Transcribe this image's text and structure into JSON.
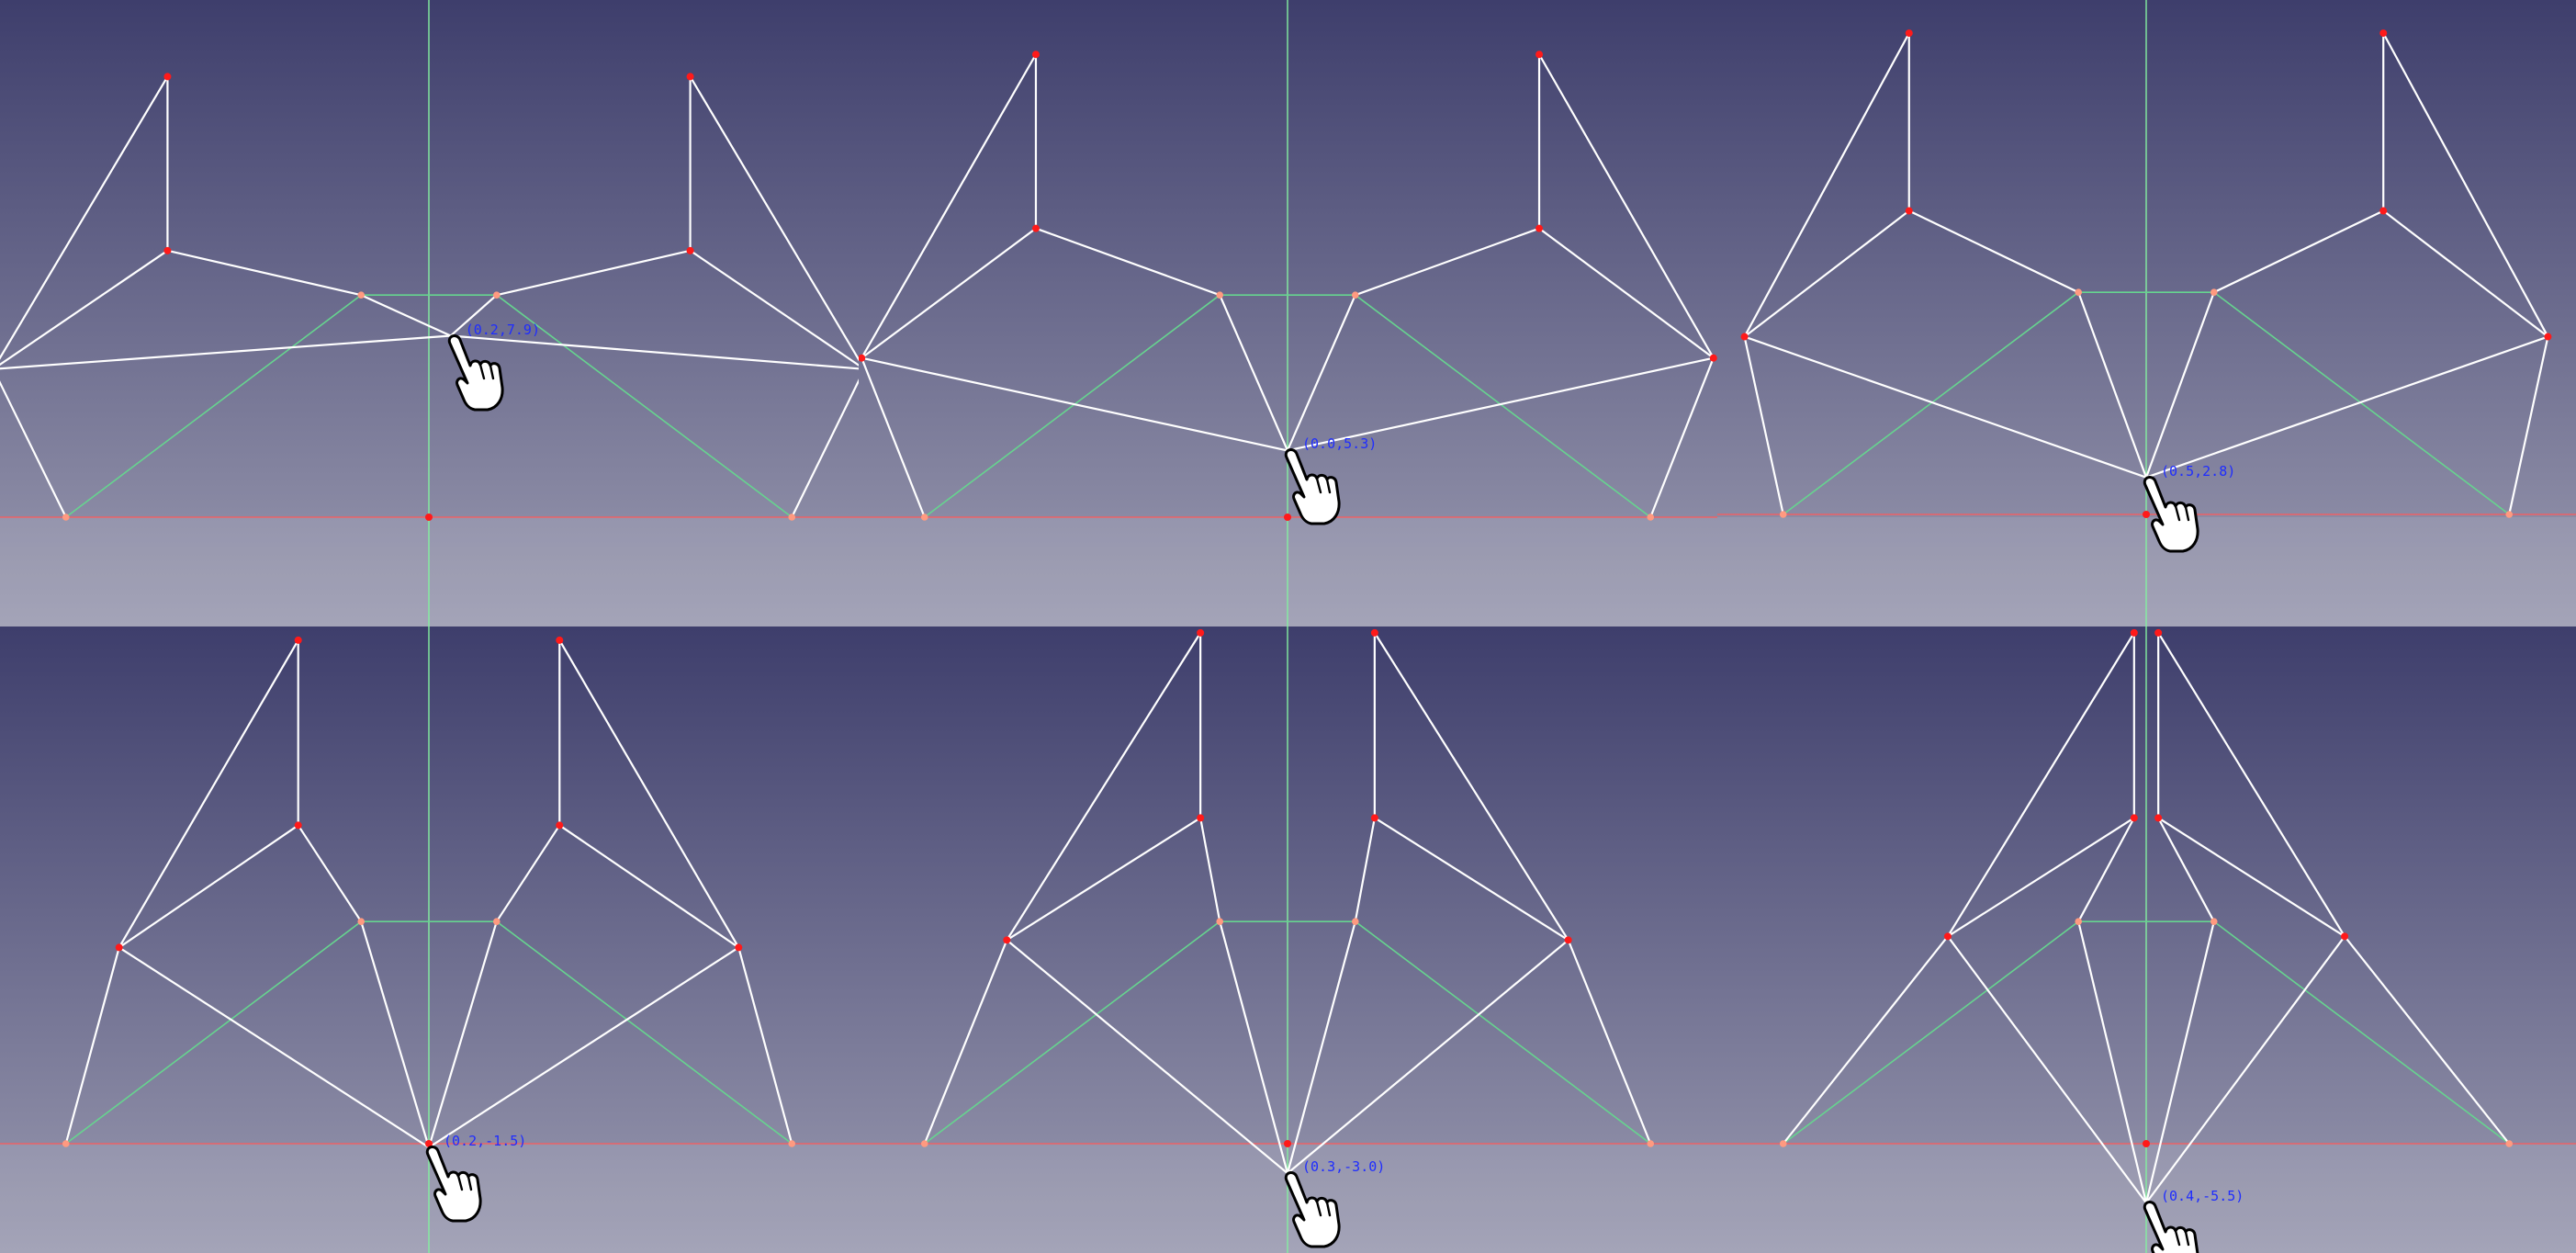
{
  "window": {
    "title": ""
  },
  "colors": {
    "bg_top": "#3e3e6c",
    "bg_bottom": "#9a9ab0",
    "link": "#ffffff",
    "construction": "#66d48f",
    "v_axis": "#84f0a0",
    "h_axis": "#ff5a5a",
    "joint": "#ff1a1a",
    "base_joint": "#ff9a80",
    "readout": "#1f2dff"
  },
  "icons": {
    "cursor": "hand-pointer-icon"
  },
  "panels": [
    {
      "readout": "(0.2,7.9)",
      "cursor": [
        0.45,
        4.9
      ],
      "pts": {
        "A": [
          -5.4,
          11.9
        ],
        "B": [
          -5.4,
          7.2
        ],
        "C": [
          -9.0,
          4.0
        ],
        "D": [
          5.4,
          11.9
        ],
        "E": [
          5.4,
          7.2
        ],
        "F": [
          9.0,
          4.0
        ]
      }
    },
    {
      "readout": "(0.0,5.3)",
      "cursor": [
        0.0,
        1.8
      ],
      "pts": {
        "A": [
          -5.2,
          12.5
        ],
        "B": [
          -5.2,
          7.8
        ],
        "C": [
          -8.8,
          4.3
        ],
        "D": [
          5.2,
          12.5
        ],
        "E": [
          5.2,
          7.8
        ],
        "F": [
          8.8,
          4.3
        ]
      }
    },
    {
      "readout": "(0.5,2.8)",
      "cursor": [
        0.0,
        1.0
      ],
      "pts": {
        "A": [
          -4.9,
          13.0
        ],
        "B": [
          -4.9,
          8.2
        ],
        "C": [
          -8.3,
          4.8
        ],
        "D": [
          4.9,
          13.0
        ],
        "E": [
          4.9,
          8.2
        ],
        "F": [
          8.3,
          4.8
        ]
      }
    },
    {
      "readout": "(0.2,-1.5)",
      "cursor": [
        0.0,
        -0.1
      ],
      "pts": {
        "A": [
          -2.7,
          13.6
        ],
        "B": [
          -2.7,
          8.6
        ],
        "C": [
          -6.4,
          5.3
        ],
        "D": [
          2.7,
          13.6
        ],
        "E": [
          2.7,
          8.6
        ],
        "F": [
          6.4,
          5.3
        ]
      }
    },
    {
      "readout": "(0.3,-3.0)",
      "cursor": [
        0.0,
        -0.8
      ],
      "pts": {
        "A": [
          -1.8,
          13.8
        ],
        "B": [
          -1.8,
          8.8
        ],
        "C": [
          -5.8,
          5.5
        ],
        "D": [
          1.8,
          13.8
        ],
        "E": [
          1.8,
          8.8
        ],
        "F": [
          5.8,
          5.5
        ]
      }
    },
    {
      "readout": "(0.4,-5.5)",
      "cursor": [
        0.0,
        -1.6
      ],
      "pts": {
        "A": [
          -0.25,
          13.8
        ],
        "B": [
          -0.25,
          8.8
        ],
        "C": [
          -4.1,
          5.6
        ],
        "D": [
          0.25,
          13.8
        ],
        "E": [
          0.25,
          8.8
        ],
        "F": [
          4.1,
          5.6
        ]
      }
    }
  ]
}
